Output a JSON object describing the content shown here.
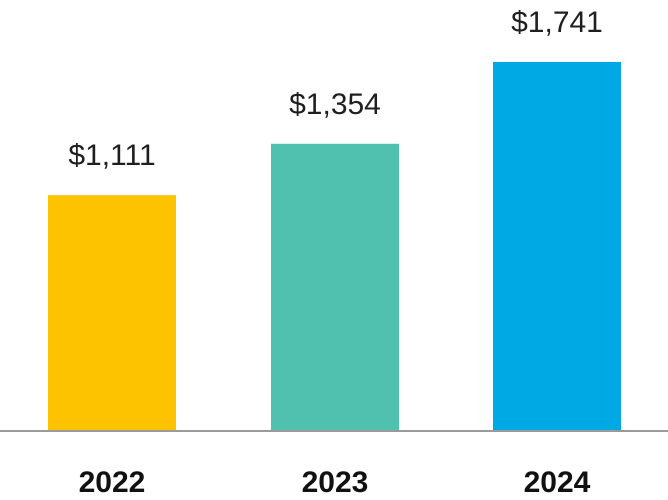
{
  "chart_data": {
    "type": "bar",
    "categories": [
      "2022",
      "2023",
      "2024"
    ],
    "values": [
      1111,
      1354,
      1741
    ],
    "data_labels": [
      "$1,111",
      "$1,354",
      "$1,741"
    ],
    "colors": [
      "#FDC300",
      "#4FC1AE",
      "#00A8E4"
    ],
    "axis_color": "#9a9a9a",
    "title": "",
    "xlabel": "",
    "ylabel": "",
    "ylim": [
      0,
      1741
    ],
    "grid": false,
    "legend": "none"
  }
}
